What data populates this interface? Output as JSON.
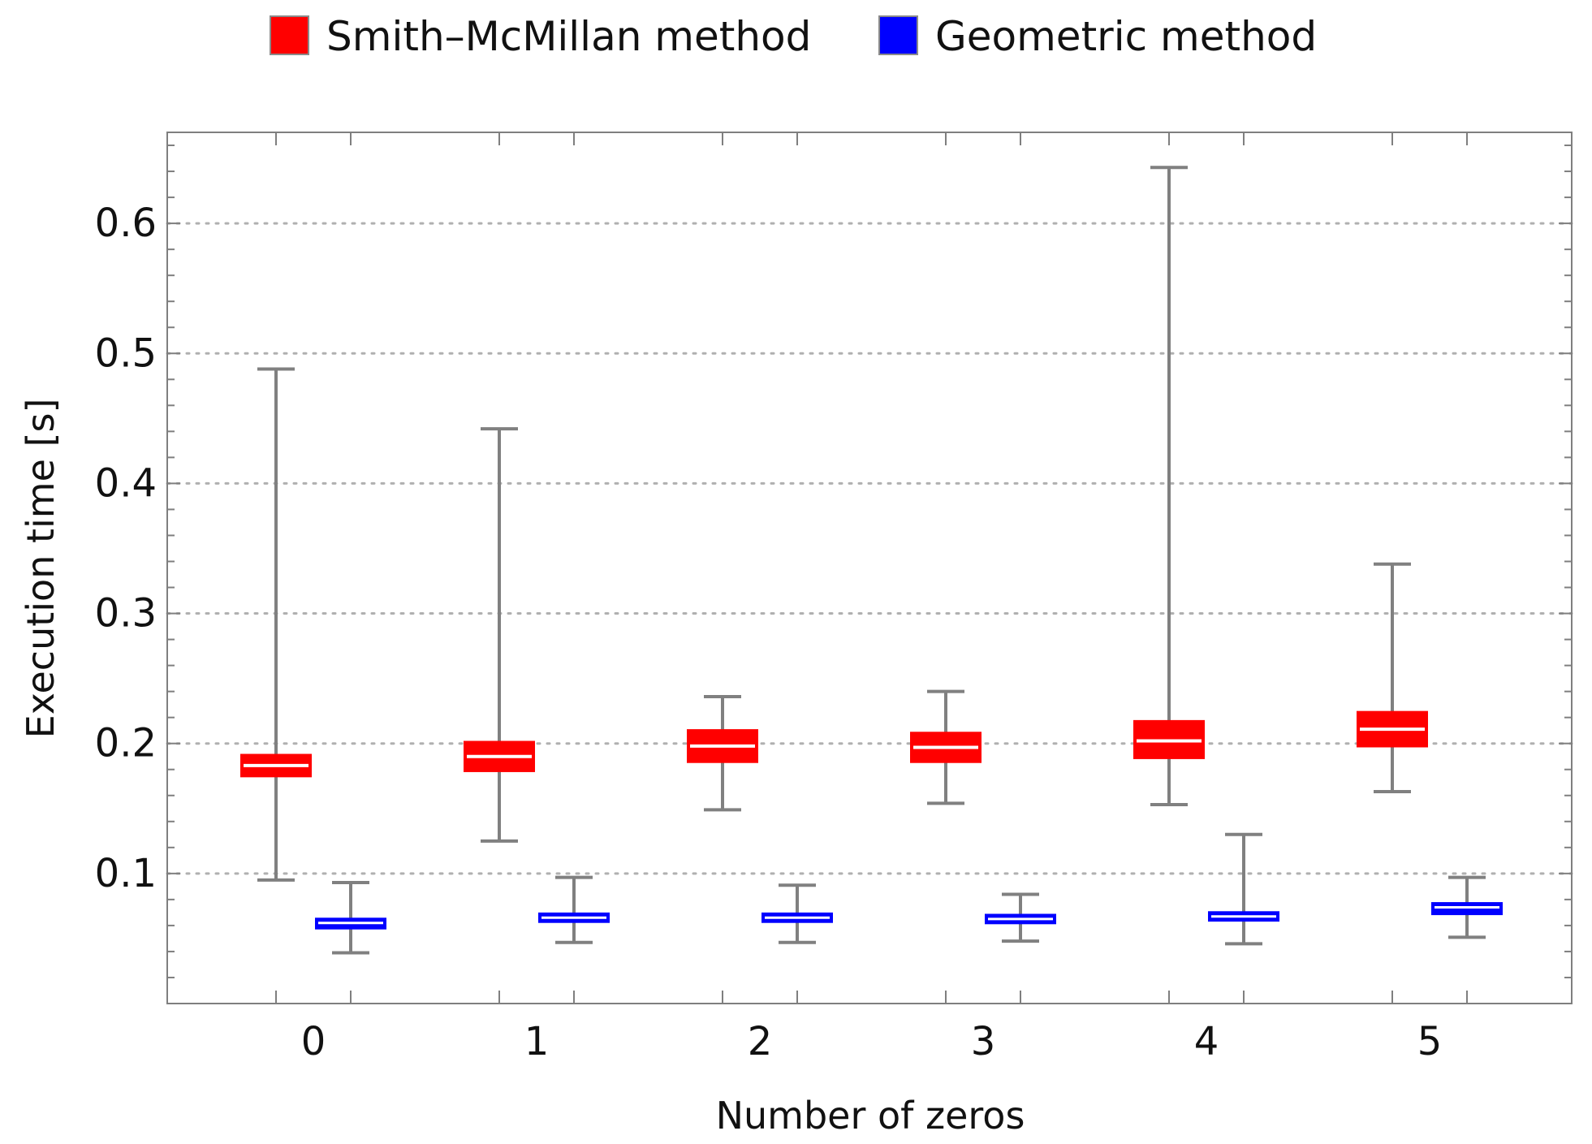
{
  "chart_data": {
    "type": "box",
    "xlabel": "Number of zeros",
    "ylabel": "Execution time [s]",
    "ylim": [
      0.0,
      0.67
    ],
    "yticks": [
      0.1,
      0.2,
      0.3,
      0.4,
      0.5,
      0.6
    ],
    "ytick_labels": [
      "0.1",
      "0.2",
      "0.3",
      "0.4",
      "0.5",
      "0.6"
    ],
    "grid": "horizontal dotted",
    "legend_position": "top",
    "categories": [
      "0",
      "1",
      "2",
      "3",
      "4",
      "5"
    ],
    "series": [
      {
        "name": "Smith–McMillan method",
        "color": "#ff0000",
        "boxes": [
          {
            "min": 0.095,
            "q1": 0.174,
            "median": 0.183,
            "q3": 0.192,
            "max": 0.488
          },
          {
            "min": 0.125,
            "q1": 0.178,
            "median": 0.19,
            "q3": 0.202,
            "max": 0.442
          },
          {
            "min": 0.149,
            "q1": 0.185,
            "median": 0.198,
            "q3": 0.211,
            "max": 0.236
          },
          {
            "min": 0.154,
            "q1": 0.185,
            "median": 0.197,
            "q3": 0.209,
            "max": 0.24
          },
          {
            "min": 0.153,
            "q1": 0.188,
            "median": 0.202,
            "q3": 0.218,
            "max": 0.643
          },
          {
            "min": 0.163,
            "q1": 0.197,
            "median": 0.211,
            "q3": 0.225,
            "max": 0.338
          }
        ]
      },
      {
        "name": "Geometric method",
        "color": "#0000ff",
        "boxes": [
          {
            "min": 0.039,
            "q1": 0.057,
            "median": 0.062,
            "q3": 0.066,
            "max": 0.093
          },
          {
            "min": 0.047,
            "q1": 0.062,
            "median": 0.066,
            "q3": 0.07,
            "max": 0.097
          },
          {
            "min": 0.047,
            "q1": 0.062,
            "median": 0.066,
            "q3": 0.07,
            "max": 0.091
          },
          {
            "min": 0.048,
            "q1": 0.061,
            "median": 0.065,
            "q3": 0.069,
            "max": 0.084
          },
          {
            "min": 0.046,
            "q1": 0.063,
            "median": 0.067,
            "q3": 0.071,
            "max": 0.13
          },
          {
            "min": 0.051,
            "q1": 0.068,
            "median": 0.074,
            "q3": 0.078,
            "max": 0.097
          }
        ]
      }
    ]
  },
  "colors": {
    "whisker": "#808080",
    "grid": "#b0b0b0",
    "frame": "#7f7f7f",
    "median": "#ffffff"
  }
}
